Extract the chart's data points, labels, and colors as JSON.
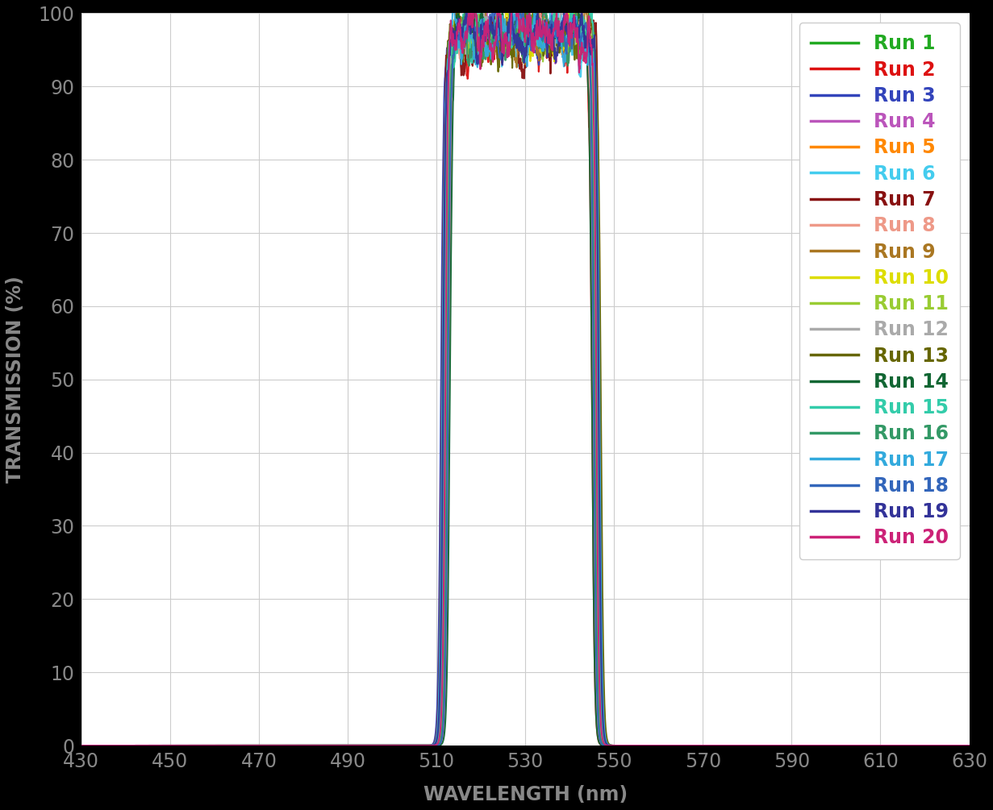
{
  "runs": [
    {
      "label": "Run 1",
      "color": "#22aa22"
    },
    {
      "label": "Run 2",
      "color": "#dd1111"
    },
    {
      "label": "Run 3",
      "color": "#3344bb"
    },
    {
      "label": "Run 4",
      "color": "#bb55bb"
    },
    {
      "label": "Run 5",
      "color": "#ff8800"
    },
    {
      "label": "Run 6",
      "color": "#44ccee"
    },
    {
      "label": "Run 7",
      "color": "#881111"
    },
    {
      "label": "Run 8",
      "color": "#ee9988"
    },
    {
      "label": "Run 9",
      "color": "#aa7722"
    },
    {
      "label": "Run 10",
      "color": "#dddd00"
    },
    {
      "label": "Run 11",
      "color": "#99cc33"
    },
    {
      "label": "Run 12",
      "color": "#aaaaaa"
    },
    {
      "label": "Run 13",
      "color": "#666600"
    },
    {
      "label": "Run 14",
      "color": "#116633"
    },
    {
      "label": "Run 15",
      "color": "#33ccaa"
    },
    {
      "label": "Run 16",
      "color": "#339966"
    },
    {
      "label": "Run 17",
      "color": "#33aadd"
    },
    {
      "label": "Run 18",
      "color": "#3366bb"
    },
    {
      "label": "Run 19",
      "color": "#333399"
    },
    {
      "label": "Run 20",
      "color": "#cc2277"
    }
  ],
  "xlim": [
    430,
    630
  ],
  "ylim": [
    0,
    100
  ],
  "xticks": [
    430,
    450,
    470,
    490,
    510,
    530,
    550,
    570,
    590,
    610,
    630
  ],
  "yticks": [
    0,
    10,
    20,
    30,
    40,
    50,
    60,
    70,
    80,
    90,
    100
  ],
  "xlabel": "WAVELENGTH (nm)",
  "ylabel": "TRANSMISSION (%)",
  "fig_bg_color": "#000000",
  "plot_bg_color": "#ffffff",
  "tick_color": "#888888",
  "label_color": "#888888",
  "grid_color": "#cccccc",
  "linewidth": 1.5,
  "legend_fontsize": 17,
  "axis_label_fontsize": 17,
  "tick_fontsize": 17
}
